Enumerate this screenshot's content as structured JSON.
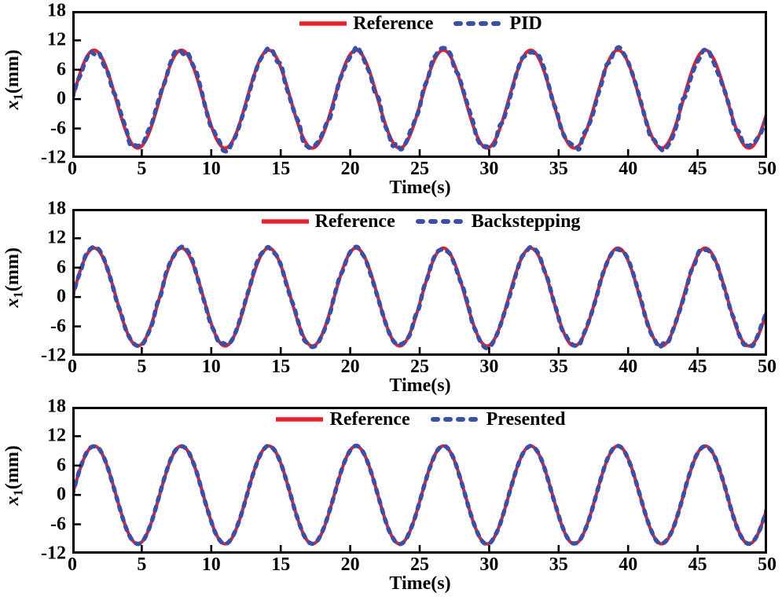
{
  "figure": {
    "background": "#ffffff",
    "axis_color": "#000000",
    "text_color": "#000000",
    "reference_color": "#e8222c",
    "tracking_color": "#3d4ea5"
  },
  "chart_data": [
    {
      "type": "line",
      "title": "",
      "xlabel": "Time(s)",
      "ylabel": "x1(mm)",
      "ylabel_parts": {
        "variable": "x",
        "subscript": "1",
        "unit": "(mm)"
      },
      "xlim": [
        0,
        50
      ],
      "ylim": [
        -12,
        18
      ],
      "xticks": [
        0,
        5,
        10,
        15,
        20,
        25,
        30,
        35,
        40,
        45,
        50
      ],
      "yticks": [
        18,
        12,
        6,
        0,
        -6,
        -12
      ],
      "grid": false,
      "legend_position": "top-center-inside",
      "series": [
        {
          "name": "Reference",
          "color": "#e8222c",
          "line_style": "solid",
          "line_width": 4.2,
          "signal": {
            "shape": "sine",
            "amplitude_mm": 10,
            "angular_frequency_rad_per_s": 1,
            "period_s": 6.283,
            "phase_rad": 0,
            "offset_mm": 0
          },
          "noise_amplitude_mm": 0
        },
        {
          "name": "PID",
          "color": "#3d4ea5",
          "line_style": "dashed",
          "line_width": 5.5,
          "signal": {
            "shape": "sine",
            "amplitude_mm": 10,
            "angular_frequency_rad_per_s": 1,
            "period_s": 6.283,
            "phase_rad": 0,
            "offset_mm": 0
          },
          "noise_amplitude_mm": 0.85
        }
      ]
    },
    {
      "type": "line",
      "title": "",
      "xlabel": "Time(s)",
      "ylabel": "x1(mm)",
      "ylabel_parts": {
        "variable": "x",
        "subscript": "1",
        "unit": "(mm)"
      },
      "xlim": [
        0,
        50
      ],
      "ylim": [
        -12,
        18
      ],
      "xticks": [
        0,
        5,
        10,
        15,
        20,
        25,
        30,
        35,
        40,
        45,
        50
      ],
      "yticks": [
        18,
        12,
        6,
        0,
        -6,
        -12
      ],
      "grid": false,
      "legend_position": "top-center-inside",
      "series": [
        {
          "name": "Reference",
          "color": "#e8222c",
          "line_style": "solid",
          "line_width": 4.2,
          "signal": {
            "shape": "sine",
            "amplitude_mm": 10,
            "angular_frequency_rad_per_s": 1,
            "period_s": 6.283,
            "phase_rad": 0,
            "offset_mm": 0
          },
          "noise_amplitude_mm": 0
        },
        {
          "name": "Backstepping",
          "color": "#3d4ea5",
          "line_style": "dashed",
          "line_width": 5.5,
          "signal": {
            "shape": "sine",
            "amplitude_mm": 10,
            "angular_frequency_rad_per_s": 1,
            "period_s": 6.283,
            "phase_rad": 0,
            "offset_mm": 0
          },
          "noise_amplitude_mm": 0.5
        }
      ]
    },
    {
      "type": "line",
      "title": "",
      "xlabel": "Time(s)",
      "ylabel": "x1(mm)",
      "ylabel_parts": {
        "variable": "x",
        "subscript": "1",
        "unit": "(mm)"
      },
      "xlim": [
        0,
        50
      ],
      "ylim": [
        -12,
        18
      ],
      "xticks": [
        0,
        5,
        10,
        15,
        20,
        25,
        30,
        35,
        40,
        45,
        50
      ],
      "yticks": [
        18,
        12,
        6,
        0,
        -6,
        -12
      ],
      "grid": false,
      "legend_position": "top-center-inside",
      "series": [
        {
          "name": "Reference",
          "color": "#e8222c",
          "line_style": "solid",
          "line_width": 4.2,
          "signal": {
            "shape": "sine",
            "amplitude_mm": 10,
            "angular_frequency_rad_per_s": 1,
            "period_s": 6.283,
            "phase_rad": 0,
            "offset_mm": 0
          },
          "noise_amplitude_mm": 0
        },
        {
          "name": "Presented",
          "color": "#3d4ea5",
          "line_style": "dashed",
          "line_width": 5.5,
          "signal": {
            "shape": "sine",
            "amplitude_mm": 10,
            "angular_frequency_rad_per_s": 1,
            "period_s": 6.283,
            "phase_rad": 0,
            "offset_mm": 0
          },
          "noise_amplitude_mm": 0.1
        }
      ]
    }
  ]
}
